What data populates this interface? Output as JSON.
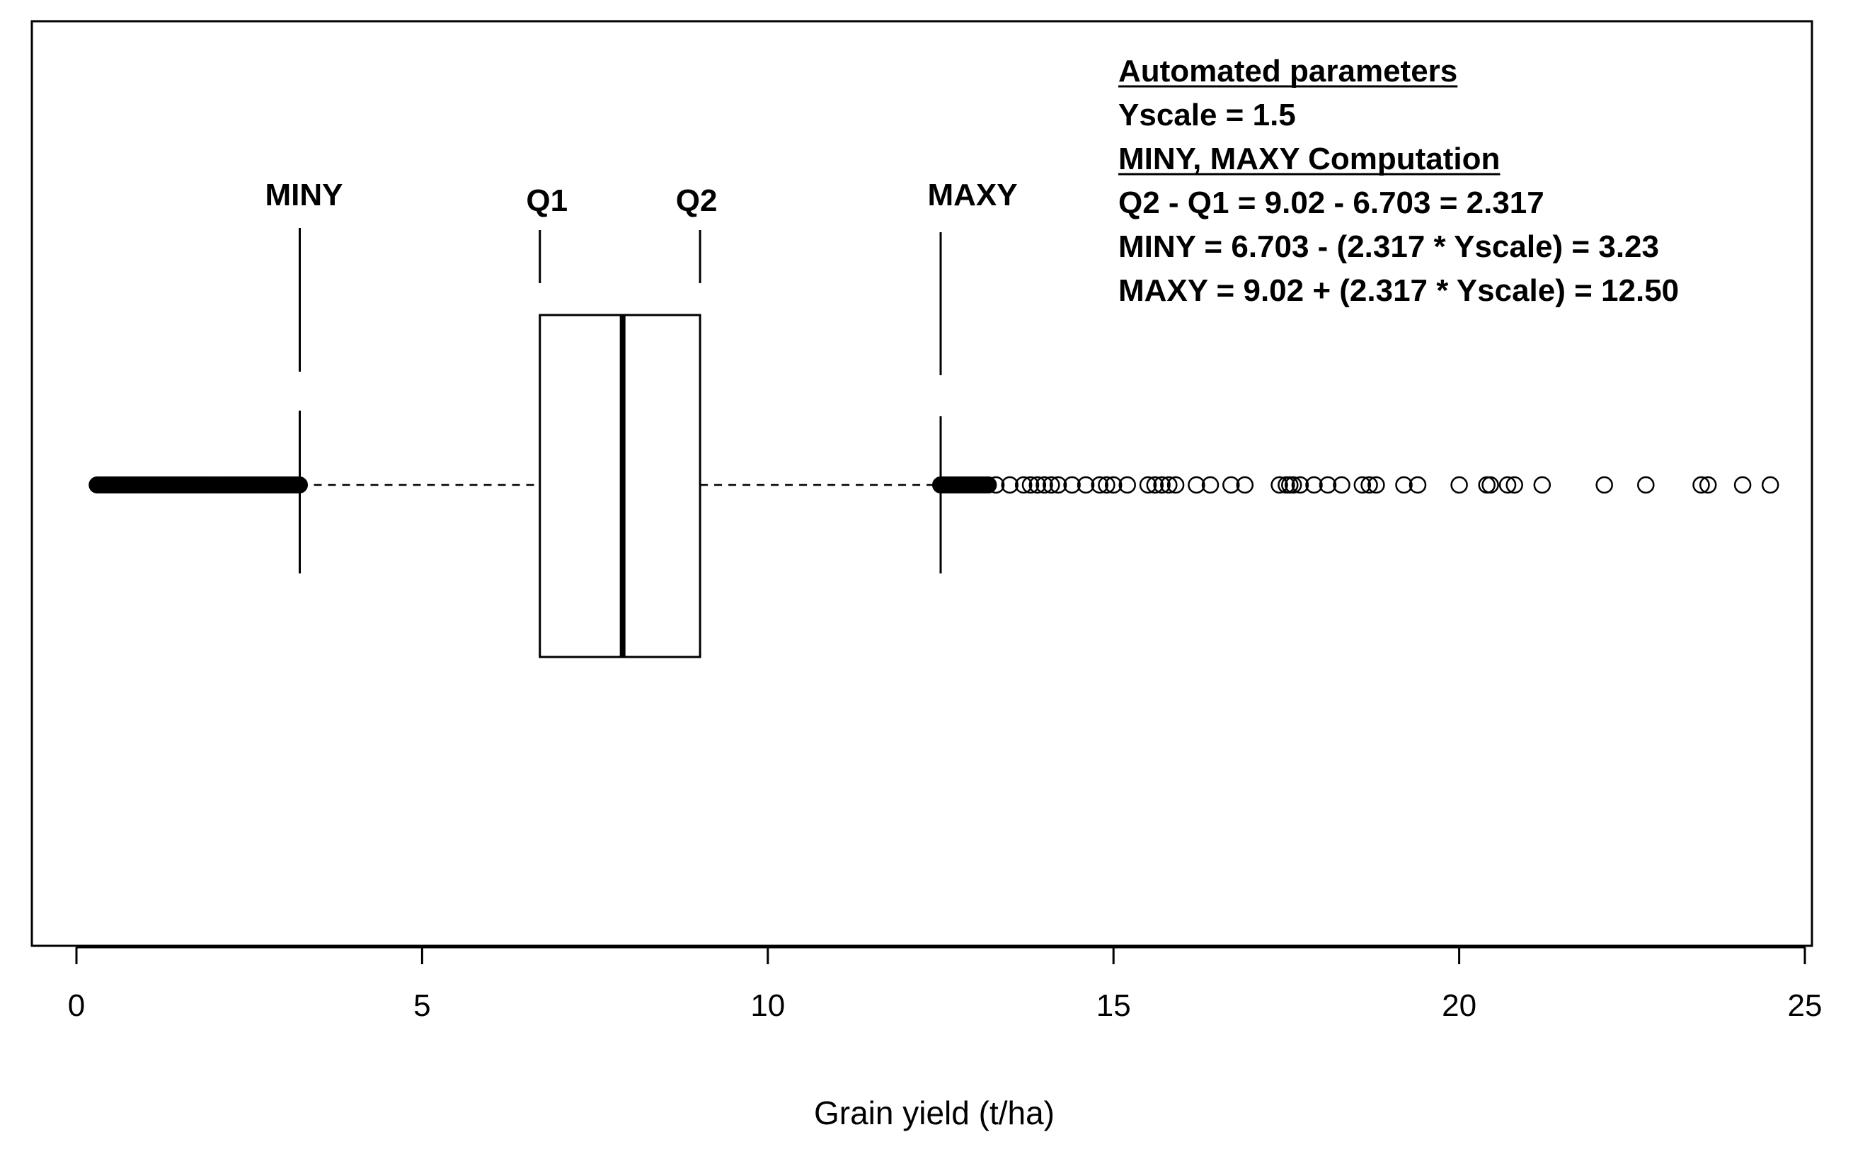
{
  "chart_data": {
    "type": "boxplot",
    "orientation": "horizontal",
    "xlabel": "Grain yield (t/ha)",
    "xlim": [
      0,
      25
    ],
    "xticks": [
      0,
      5,
      10,
      15,
      20,
      25
    ],
    "xtick_labels": [
      "0",
      "5",
      "10",
      "15",
      "20",
      "25"
    ],
    "box": {
      "q1": 6.703,
      "median": 7.9,
      "q3": 9.02,
      "whisker_low": 3.23,
      "whisker_high": 12.5
    },
    "markers": [
      {
        "label": "MINY",
        "value": 3.23
      },
      {
        "label": "Q1",
        "value": 6.703
      },
      {
        "label": "Q2",
        "value": 9.02
      },
      {
        "label": "MAXY",
        "value": 12.5
      }
    ],
    "outliers_low_dense_range": [
      0.3,
      3.23
    ],
    "outliers_high_dense_range": [
      12.5,
      13.2
    ],
    "outliers_high": [
      13.3,
      13.5,
      13.7,
      13.8,
      13.9,
      14.0,
      14.1,
      14.2,
      14.4,
      14.6,
      14.8,
      14.9,
      15.0,
      15.2,
      15.5,
      15.6,
      15.7,
      15.8,
      15.9,
      16.2,
      16.4,
      16.7,
      16.9,
      17.4,
      17.5,
      17.55,
      17.6,
      17.7,
      17.9,
      18.1,
      18.3,
      18.6,
      18.7,
      18.8,
      19.2,
      19.4,
      20.0,
      20.4,
      20.45,
      20.7,
      20.8,
      21.2,
      22.1,
      22.7,
      23.5,
      23.6,
      24.1,
      24.5
    ],
    "annotations": [
      {
        "text": "Automated parameters",
        "underline": true
      },
      {
        "text": "Yscale = 1.5",
        "underline": false
      },
      {
        "text": "MINY, MAXY Computation",
        "underline": true
      },
      {
        "text": "Q2 - Q1 = 9.02 - 6.703 = 2.317",
        "underline": false
      },
      {
        "text": "MINY  = 6.703 - (2.317 * Yscale) = 3.23",
        "underline": false
      },
      {
        "text": "MAXY = 9.02 + (2.317 * Yscale) = 12.50",
        "underline": false
      }
    ],
    "grid": false
  }
}
